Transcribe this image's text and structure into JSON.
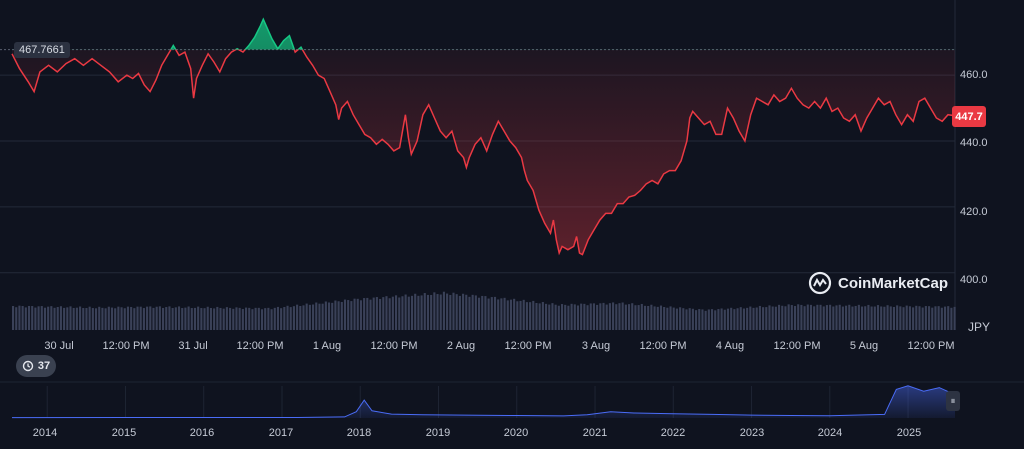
{
  "chart_data": {
    "type": "line",
    "currency": "JPY",
    "reference_value": "467.7661",
    "current_value": "447.7",
    "y_ticks": [
      "400.0",
      "420.0",
      "440.0",
      "460.0"
    ],
    "ylim": [
      382.6,
      480.4
    ],
    "x_ticks": [
      "30 Jul",
      "12:00 PM",
      "31 Jul",
      "12:00 PM",
      "1 Aug",
      "12:00 PM",
      "2 Aug",
      "12:00 PM",
      "3 Aug",
      "12:00 PM",
      "4 Aug",
      "12:00 PM",
      "5 Aug",
      "12:00 PM"
    ],
    "x_tick_hours": [
      0,
      12,
      24,
      36,
      48,
      60,
      72,
      84,
      96,
      108,
      120,
      132,
      144,
      156
    ],
    "x_range_hours": [
      -4.3,
      158.2
    ],
    "series": [
      {
        "values": [
          [
            -4.3,
            466.5
          ],
          [
            -3,
            462
          ],
          [
            -1.5,
            458
          ],
          [
            -0.5,
            455
          ],
          [
            0.5,
            461
          ],
          [
            2,
            463
          ],
          [
            3.5,
            461
          ],
          [
            5,
            463.5
          ],
          [
            6.5,
            465
          ],
          [
            8,
            463
          ],
          [
            9.5,
            465
          ],
          [
            11,
            463
          ],
          [
            12.5,
            461
          ],
          [
            14,
            458
          ],
          [
            15.5,
            460
          ],
          [
            16.5,
            459
          ],
          [
            17.5,
            460.5
          ],
          [
            18.5,
            457
          ],
          [
            19.5,
            455
          ],
          [
            20.5,
            458.5
          ],
          [
            21.5,
            463
          ],
          [
            22.5,
            466
          ],
          [
            23.5,
            469
          ],
          [
            24.5,
            466
          ],
          [
            25.5,
            467
          ],
          [
            26.5,
            462
          ],
          [
            27,
            453
          ],
          [
            27.5,
            459
          ],
          [
            28.5,
            463
          ],
          [
            29.5,
            466.5
          ],
          [
            30.5,
            464
          ],
          [
            31.5,
            461
          ],
          [
            32.5,
            465
          ],
          [
            33.5,
            467
          ],
          [
            34.5,
            468
          ],
          [
            35.5,
            467
          ],
          [
            36.5,
            469
          ],
          [
            37.5,
            471.5
          ],
          [
            38.5,
            475
          ],
          [
            39,
            477
          ],
          [
            39.5,
            475
          ],
          [
            40.5,
            471
          ],
          [
            41.5,
            468
          ],
          [
            42.5,
            470.5
          ],
          [
            43.5,
            472
          ],
          [
            44.5,
            467
          ],
          [
            45.5,
            468.5
          ],
          [
            46.5,
            465.5
          ],
          [
            47.5,
            463
          ],
          [
            48.5,
            460
          ],
          [
            49.5,
            459
          ],
          [
            50.5,
            455
          ],
          [
            51.5,
            451
          ],
          [
            52,
            446.5
          ],
          [
            52.5,
            450
          ],
          [
            53.5,
            452
          ],
          [
            54.5,
            448
          ],
          [
            55.5,
            445
          ],
          [
            56.5,
            442
          ],
          [
            57.5,
            441
          ],
          [
            58.5,
            439
          ],
          [
            59.5,
            440.5
          ],
          [
            60.5,
            439
          ],
          [
            61.5,
            437
          ],
          [
            62.5,
            438
          ],
          [
            63,
            443
          ],
          [
            63.5,
            448
          ],
          [
            64,
            441
          ],
          [
            64.5,
            436
          ],
          [
            65.5,
            440
          ],
          [
            66.5,
            448
          ],
          [
            67.5,
            451
          ],
          [
            68.5,
            447
          ],
          [
            69.5,
            443
          ],
          [
            70.5,
            441
          ],
          [
            71.5,
            443
          ],
          [
            72.5,
            437
          ],
          [
            73.5,
            435
          ],
          [
            74,
            432
          ],
          [
            74.5,
            435
          ],
          [
            75.5,
            439
          ],
          [
            76.5,
            441
          ],
          [
            77.5,
            437
          ],
          [
            78.5,
            442
          ],
          [
            79.5,
            446
          ],
          [
            80.5,
            443
          ],
          [
            81.5,
            440
          ],
          [
            82.5,
            438
          ],
          [
            83.5,
            435
          ],
          [
            84,
            431
          ],
          [
            84.5,
            428
          ],
          [
            85.5,
            425
          ],
          [
            86.5,
            419
          ],
          [
            87.5,
            415
          ],
          [
            88.5,
            412
          ],
          [
            89,
            416
          ],
          [
            89.5,
            410
          ],
          [
            90,
            406
          ],
          [
            90.5,
            408
          ],
          [
            91.5,
            407
          ],
          [
            92.5,
            408
          ],
          [
            93,
            411
          ],
          [
            93.5,
            406
          ],
          [
            94,
            405.5
          ],
          [
            95,
            410
          ],
          [
            96,
            413
          ],
          [
            97,
            416
          ],
          [
            98,
            418
          ],
          [
            99,
            418
          ],
          [
            100,
            421
          ],
          [
            101,
            421
          ],
          [
            102,
            423
          ],
          [
            103,
            423.5
          ],
          [
            104,
            425
          ],
          [
            105,
            427
          ],
          [
            106,
            428
          ],
          [
            107,
            427
          ],
          [
            108,
            430
          ],
          [
            109,
            431
          ],
          [
            110,
            431
          ],
          [
            111,
            434
          ],
          [
            112,
            440
          ],
          [
            112.5,
            447
          ],
          [
            113,
            449
          ],
          [
            114,
            447
          ],
          [
            115,
            445
          ],
          [
            116,
            446
          ],
          [
            117,
            442
          ],
          [
            118,
            442
          ],
          [
            119,
            450
          ],
          [
            120,
            447
          ],
          [
            121,
            443
          ],
          [
            122,
            440
          ],
          [
            123,
            448
          ],
          [
            124,
            453
          ],
          [
            125,
            452
          ],
          [
            126,
            451
          ],
          [
            127,
            454
          ],
          [
            128,
            452
          ],
          [
            129,
            453
          ],
          [
            130,
            456
          ],
          [
            131,
            453
          ],
          [
            132,
            451
          ],
          [
            133,
            450
          ],
          [
            134,
            452
          ],
          [
            135,
            450
          ],
          [
            136,
            453
          ],
          [
            137,
            449
          ],
          [
            138,
            450
          ],
          [
            139,
            447
          ],
          [
            140,
            446
          ],
          [
            141,
            448
          ],
          [
            142,
            443
          ],
          [
            143,
            447
          ],
          [
            144,
            450
          ],
          [
            145,
            453
          ],
          [
            146,
            451
          ],
          [
            147,
            452
          ],
          [
            148,
            448
          ],
          [
            149,
            445
          ],
          [
            150,
            448
          ],
          [
            151,
            446
          ],
          [
            152,
            452
          ],
          [
            153,
            453
          ],
          [
            154,
            450
          ],
          [
            155,
            447
          ],
          [
            156,
            446
          ],
          [
            157,
            448
          ],
          [
            158.2,
            447.7
          ]
        ]
      }
    ],
    "volume": [
      [
        -4.3,
        0.62
      ],
      [
        10,
        0.58
      ],
      [
        20,
        0.6
      ],
      [
        40,
        0.56
      ],
      [
        55,
        0.8
      ],
      [
        70,
        0.96
      ],
      [
        78,
        0.85
      ],
      [
        90,
        0.65
      ],
      [
        100,
        0.7
      ],
      [
        115,
        0.52
      ],
      [
        130,
        0.65
      ],
      [
        158.2,
        0.6
      ]
    ],
    "navigator": {
      "year_labels": [
        "2014",
        "2015",
        "2016",
        "2017",
        "2018",
        "2019",
        "2020",
        "2021",
        "2022",
        "2023",
        "2024",
        "2025"
      ],
      "year_range": [
        2013.55,
        2025.6
      ],
      "values": [
        [
          2013.55,
          0.02
        ],
        [
          2017.2,
          0.03
        ],
        [
          2017.8,
          0.06
        ],
        [
          2017.95,
          0.35
        ],
        [
          2018.05,
          1.0
        ],
        [
          2018.15,
          0.4
        ],
        [
          2018.4,
          0.22
        ],
        [
          2018.8,
          0.18
        ],
        [
          2019.5,
          0.15
        ],
        [
          2020.0,
          0.14
        ],
        [
          2020.6,
          0.12
        ],
        [
          2020.9,
          0.18
        ],
        [
          2021.2,
          0.35
        ],
        [
          2021.5,
          0.28
        ],
        [
          2022.0,
          0.24
        ],
        [
          2022.5,
          0.2
        ],
        [
          2023.0,
          0.16
        ],
        [
          2023.5,
          0.14
        ],
        [
          2024.0,
          0.13
        ],
        [
          2024.7,
          0.2
        ],
        [
          2024.85,
          1.6
        ],
        [
          2025.0,
          1.8
        ],
        [
          2025.2,
          1.5
        ],
        [
          2025.4,
          1.7
        ],
        [
          2025.6,
          1.3
        ]
      ]
    }
  },
  "watermark": "CoinMarketCap",
  "history_badge": "37",
  "colors": {
    "background": "#0f131f",
    "line_down": "#ea3943",
    "line_up": "#16c784",
    "volume": "#3a4158",
    "navigator_line": "#4a6cf7"
  }
}
